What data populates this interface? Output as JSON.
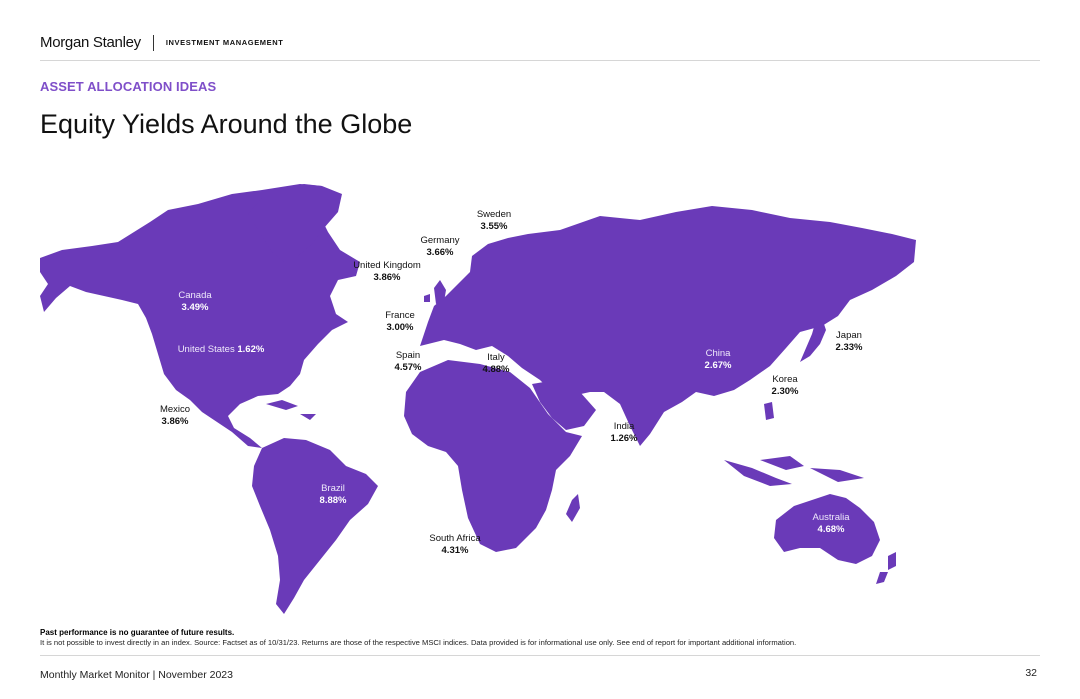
{
  "header": {
    "brand": "Morgan Stanley",
    "division": "INVESTMENT MANAGEMENT"
  },
  "section_label": "ASSET ALLOCATION IDEAS",
  "title": "Equity Yields Around the Globe",
  "map": {
    "fill_color": "#6a3ab8",
    "countries": [
      {
        "name": "Canada",
        "value": "3.49%"
      },
      {
        "name": "United States",
        "value": "1.62%"
      },
      {
        "name": "Mexico",
        "value": "3.86%"
      },
      {
        "name": "Brazil",
        "value": "8.88%"
      },
      {
        "name": "United Kingdom",
        "value": "3.86%"
      },
      {
        "name": "Germany",
        "value": "3.66%"
      },
      {
        "name": "Sweden",
        "value": "3.55%"
      },
      {
        "name": "France",
        "value": "3.00%"
      },
      {
        "name": "Spain",
        "value": "4.57%"
      },
      {
        "name": "Italy",
        "value": "4.88%"
      },
      {
        "name": "South Africa",
        "value": "4.31%"
      },
      {
        "name": "India",
        "value": "1.26%"
      },
      {
        "name": "China",
        "value": "2.67%"
      },
      {
        "name": "Korea",
        "value": "2.30%"
      },
      {
        "name": "Japan",
        "value": "2.33%"
      },
      {
        "name": "Australia",
        "value": "4.68%"
      }
    ]
  },
  "disclaimer": {
    "bold": "Past performance is no guarantee of future results.",
    "text": "It is not possible to invest directly in an index. Source: Factset as of 10/31/23. Returns are those of the respective MSCI indices. Data provided is for informational use only. See end of report for important additional information."
  },
  "footer": {
    "text": "Monthly Market Monitor | November 2023",
    "page": "32"
  }
}
